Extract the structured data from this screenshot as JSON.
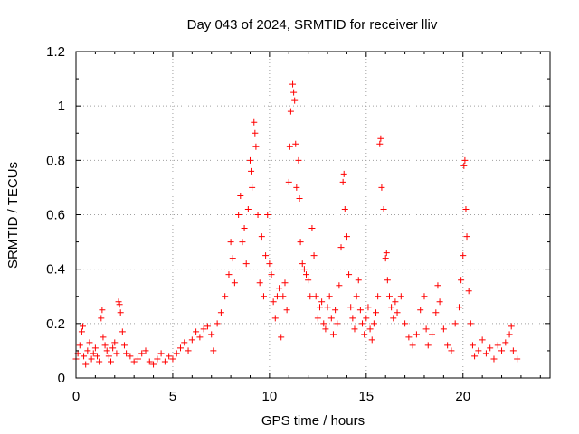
{
  "chart_data": {
    "type": "scatter",
    "title": "Day 043 of 2024, SRMTID for receiver lliv",
    "xlabel": "GPS time / hours",
    "ylabel": "SRMTID / TECUs",
    "xlim": [
      0,
      24.5
    ],
    "ylim": [
      0,
      1.2
    ],
    "x_ticks": [
      0,
      5,
      10,
      15,
      20
    ],
    "x_tick_labels": [
      "0",
      "5",
      "10",
      "15",
      "20"
    ],
    "y_ticks": [
      0,
      0.2,
      0.4,
      0.6,
      0.8,
      1,
      1.2
    ],
    "y_tick_labels": [
      "0",
      "0.2",
      "0.4",
      "0.6",
      "0.8",
      "1",
      "1.2"
    ],
    "grid": true,
    "marker": "+",
    "series": [
      {
        "name": "SRMTID",
        "color": "#ff0000",
        "points": [
          [
            0.0,
            0.07
          ],
          [
            0.1,
            0.09
          ],
          [
            0.2,
            0.12
          ],
          [
            0.3,
            0.17
          ],
          [
            0.35,
            0.19
          ],
          [
            0.4,
            0.08
          ],
          [
            0.5,
            0.05
          ],
          [
            0.6,
            0.1
          ],
          [
            0.7,
            0.13
          ],
          [
            0.8,
            0.07
          ],
          [
            0.9,
            0.09
          ],
          [
            1.0,
            0.11
          ],
          [
            1.1,
            0.08
          ],
          [
            1.2,
            0.06
          ],
          [
            1.3,
            0.22
          ],
          [
            1.35,
            0.25
          ],
          [
            1.4,
            0.15
          ],
          [
            1.5,
            0.12
          ],
          [
            1.6,
            0.1
          ],
          [
            1.7,
            0.08
          ],
          [
            1.8,
            0.06
          ],
          [
            1.9,
            0.11
          ],
          [
            2.0,
            0.13
          ],
          [
            2.1,
            0.09
          ],
          [
            2.2,
            0.28
          ],
          [
            2.25,
            0.27
          ],
          [
            2.3,
            0.24
          ],
          [
            2.4,
            0.17
          ],
          [
            2.5,
            0.12
          ],
          [
            2.6,
            0.09
          ],
          [
            2.8,
            0.08
          ],
          [
            3.0,
            0.06
          ],
          [
            3.2,
            0.07
          ],
          [
            3.4,
            0.09
          ],
          [
            3.6,
            0.1
          ],
          [
            3.8,
            0.06
          ],
          [
            4.0,
            0.05
          ],
          [
            4.2,
            0.07
          ],
          [
            4.4,
            0.09
          ],
          [
            4.6,
            0.06
          ],
          [
            4.8,
            0.08
          ],
          [
            5.0,
            0.07
          ],
          [
            5.2,
            0.09
          ],
          [
            5.4,
            0.11
          ],
          [
            5.6,
            0.13
          ],
          [
            5.8,
            0.1
          ],
          [
            6.0,
            0.14
          ],
          [
            6.2,
            0.17
          ],
          [
            6.4,
            0.15
          ],
          [
            6.6,
            0.18
          ],
          [
            6.8,
            0.19
          ],
          [
            7.0,
            0.16
          ],
          [
            7.1,
            0.1
          ],
          [
            7.3,
            0.2
          ],
          [
            7.5,
            0.24
          ],
          [
            7.7,
            0.3
          ],
          [
            7.9,
            0.38
          ],
          [
            8.0,
            0.5
          ],
          [
            8.1,
            0.44
          ],
          [
            8.2,
            0.35
          ],
          [
            8.4,
            0.6
          ],
          [
            8.5,
            0.67
          ],
          [
            8.6,
            0.5
          ],
          [
            8.7,
            0.55
          ],
          [
            8.8,
            0.42
          ],
          [
            8.9,
            0.62
          ],
          [
            9.0,
            0.8
          ],
          [
            9.05,
            0.76
          ],
          [
            9.1,
            0.7
          ],
          [
            9.2,
            0.94
          ],
          [
            9.25,
            0.9
          ],
          [
            9.3,
            0.85
          ],
          [
            9.4,
            0.6
          ],
          [
            9.5,
            0.35
          ],
          [
            9.6,
            0.52
          ],
          [
            9.7,
            0.3
          ],
          [
            9.8,
            0.45
          ],
          [
            9.9,
            0.6
          ],
          [
            10.0,
            0.42
          ],
          [
            10.1,
            0.38
          ],
          [
            10.2,
            0.28
          ],
          [
            10.3,
            0.22
          ],
          [
            10.4,
            0.3
          ],
          [
            10.5,
            0.33
          ],
          [
            10.6,
            0.15
          ],
          [
            10.7,
            0.3
          ],
          [
            10.8,
            0.35
          ],
          [
            10.9,
            0.25
          ],
          [
            11.0,
            0.72
          ],
          [
            11.05,
            0.85
          ],
          [
            11.1,
            0.98
          ],
          [
            11.2,
            1.08
          ],
          [
            11.25,
            1.05
          ],
          [
            11.3,
            1.02
          ],
          [
            11.35,
            0.86
          ],
          [
            11.4,
            0.7
          ],
          [
            11.5,
            0.8
          ],
          [
            11.55,
            0.66
          ],
          [
            11.6,
            0.5
          ],
          [
            11.7,
            0.42
          ],
          [
            11.8,
            0.4
          ],
          [
            11.9,
            0.38
          ],
          [
            12.0,
            0.36
          ],
          [
            12.1,
            0.3
          ],
          [
            12.2,
            0.55
          ],
          [
            12.3,
            0.45
          ],
          [
            12.4,
            0.3
          ],
          [
            12.5,
            0.22
          ],
          [
            12.6,
            0.26
          ],
          [
            12.7,
            0.28
          ],
          [
            12.8,
            0.2
          ],
          [
            12.9,
            0.18
          ],
          [
            13.0,
            0.26
          ],
          [
            13.1,
            0.3
          ],
          [
            13.2,
            0.22
          ],
          [
            13.3,
            0.16
          ],
          [
            13.4,
            0.25
          ],
          [
            13.5,
            0.2
          ],
          [
            13.6,
            0.34
          ],
          [
            13.7,
            0.48
          ],
          [
            13.8,
            0.72
          ],
          [
            13.85,
            0.75
          ],
          [
            13.9,
            0.62
          ],
          [
            14.0,
            0.52
          ],
          [
            14.1,
            0.38
          ],
          [
            14.2,
            0.26
          ],
          [
            14.3,
            0.22
          ],
          [
            14.4,
            0.18
          ],
          [
            14.5,
            0.3
          ],
          [
            14.6,
            0.36
          ],
          [
            14.7,
            0.25
          ],
          [
            14.8,
            0.2
          ],
          [
            14.9,
            0.16
          ],
          [
            15.0,
            0.22
          ],
          [
            15.1,
            0.26
          ],
          [
            15.2,
            0.18
          ],
          [
            15.3,
            0.14
          ],
          [
            15.4,
            0.2
          ],
          [
            15.5,
            0.24
          ],
          [
            15.6,
            0.3
          ],
          [
            15.7,
            0.86
          ],
          [
            15.75,
            0.88
          ],
          [
            15.8,
            0.7
          ],
          [
            15.9,
            0.62
          ],
          [
            16.0,
            0.44
          ],
          [
            16.05,
            0.46
          ],
          [
            16.1,
            0.36
          ],
          [
            16.2,
            0.3
          ],
          [
            16.3,
            0.26
          ],
          [
            16.4,
            0.22
          ],
          [
            16.5,
            0.28
          ],
          [
            16.6,
            0.24
          ],
          [
            16.8,
            0.3
          ],
          [
            17.0,
            0.2
          ],
          [
            17.2,
            0.15
          ],
          [
            17.4,
            0.12
          ],
          [
            17.6,
            0.16
          ],
          [
            17.8,
            0.25
          ],
          [
            18.0,
            0.3
          ],
          [
            18.1,
            0.18
          ],
          [
            18.2,
            0.12
          ],
          [
            18.4,
            0.16
          ],
          [
            18.6,
            0.24
          ],
          [
            18.7,
            0.34
          ],
          [
            18.8,
            0.28
          ],
          [
            19.0,
            0.18
          ],
          [
            19.2,
            0.12
          ],
          [
            19.4,
            0.1
          ],
          [
            19.6,
            0.2
          ],
          [
            19.8,
            0.26
          ],
          [
            19.9,
            0.36
          ],
          [
            20.0,
            0.45
          ],
          [
            20.05,
            0.78
          ],
          [
            20.1,
            0.8
          ],
          [
            20.15,
            0.62
          ],
          [
            20.2,
            0.52
          ],
          [
            20.3,
            0.32
          ],
          [
            20.4,
            0.2
          ],
          [
            20.5,
            0.12
          ],
          [
            20.6,
            0.08
          ],
          [
            20.8,
            0.1
          ],
          [
            21.0,
            0.14
          ],
          [
            21.2,
            0.09
          ],
          [
            21.4,
            0.11
          ],
          [
            21.6,
            0.07
          ],
          [
            21.8,
            0.12
          ],
          [
            22.0,
            0.1
          ],
          [
            22.2,
            0.13
          ],
          [
            22.4,
            0.16
          ],
          [
            22.5,
            0.19
          ],
          [
            22.6,
            0.1
          ],
          [
            22.8,
            0.07
          ]
        ]
      }
    ]
  }
}
